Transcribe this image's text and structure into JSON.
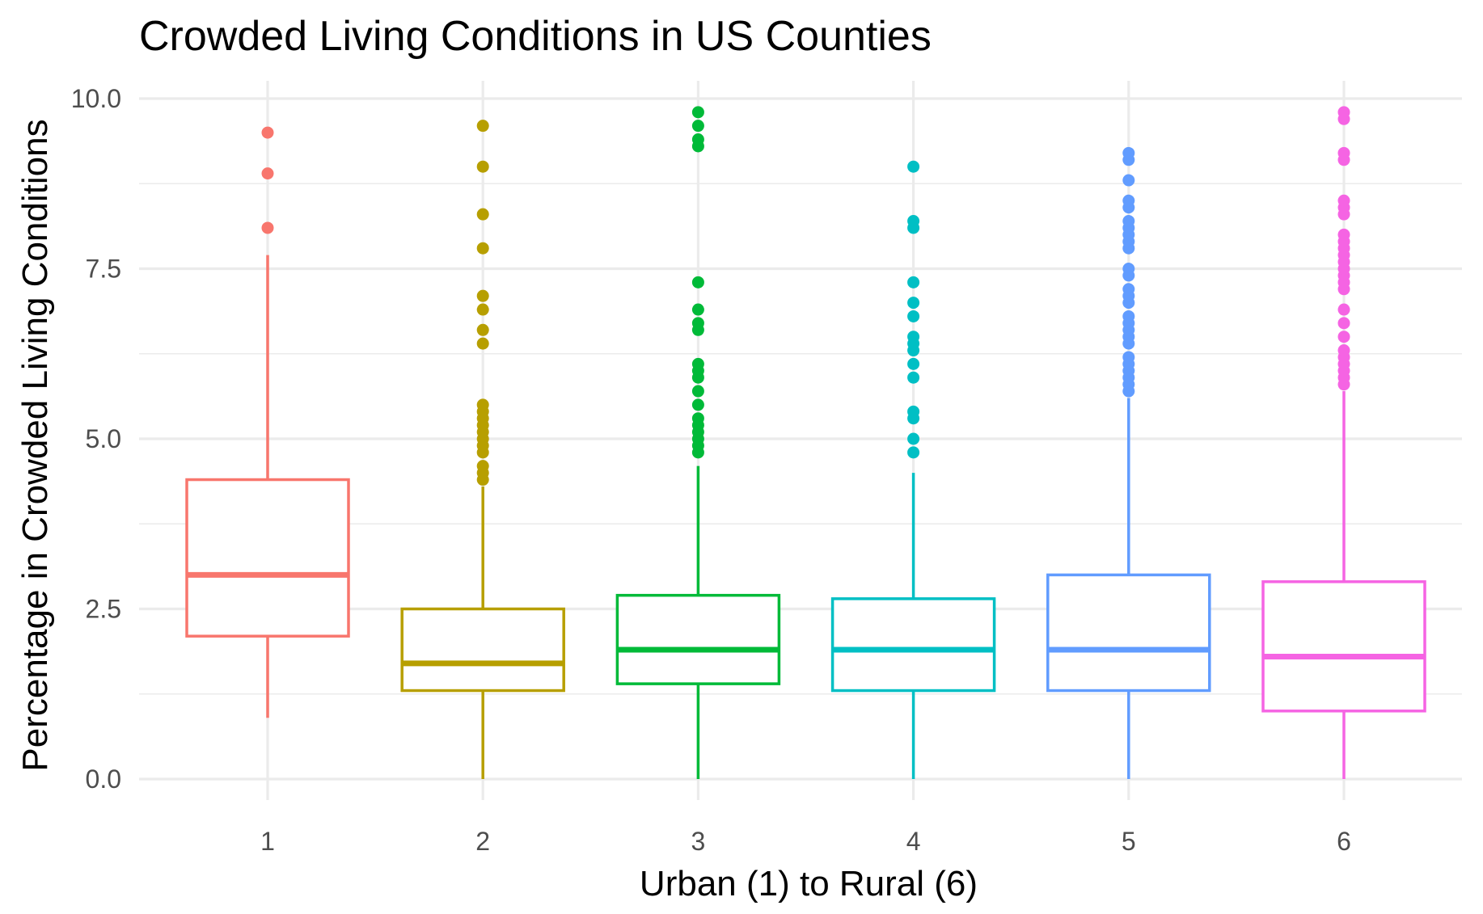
{
  "chart_data": {
    "type": "boxplot",
    "title": "Crowded Living Conditions in US Counties",
    "xlabel": "Urban (1) to Rural (6)",
    "ylabel": "Percentage in Crowded Living Conditions",
    "ylim": [
      0,
      10
    ],
    "y_ticks": [
      "0.0",
      "2.5",
      "5.0",
      "7.5",
      "10.0"
    ],
    "grid": true,
    "legend": "none",
    "categories": [
      "1",
      "2",
      "3",
      "4",
      "5",
      "6"
    ],
    "boxes": [
      {
        "category": "1",
        "color": "#F8766D",
        "whisker_low": 0.9,
        "q1": 2.1,
        "median": 3.0,
        "q3": 4.4,
        "whisker_high": 7.7,
        "outliers": [
          8.1,
          8.9,
          9.5
        ]
      },
      {
        "category": "2",
        "color": "#B79F00",
        "whisker_low": 0.0,
        "q1": 1.3,
        "median": 1.7,
        "q3": 2.5,
        "whisker_high": 4.3,
        "outliers": [
          4.4,
          4.5,
          4.6,
          4.8,
          4.9,
          5.0,
          5.1,
          5.2,
          5.3,
          5.4,
          5.5,
          6.4,
          6.6,
          6.9,
          7.1,
          7.8,
          8.3,
          9.0,
          9.6
        ]
      },
      {
        "category": "3",
        "color": "#00BA38",
        "whisker_low": 0.0,
        "q1": 1.4,
        "median": 1.9,
        "q3": 2.7,
        "whisker_high": 4.6,
        "outliers": [
          4.8,
          4.9,
          5.0,
          5.1,
          5.2,
          5.3,
          5.5,
          5.7,
          5.9,
          6.0,
          6.1,
          6.6,
          6.7,
          6.9,
          7.3,
          9.3,
          9.4,
          9.6,
          9.8
        ]
      },
      {
        "category": "4",
        "color": "#00BFC4",
        "whisker_low": 0.0,
        "q1": 1.3,
        "median": 1.9,
        "q3": 2.65,
        "whisker_high": 4.5,
        "outliers": [
          4.8,
          5.0,
          5.3,
          5.4,
          5.9,
          6.1,
          6.3,
          6.4,
          6.5,
          6.8,
          7.0,
          7.3,
          8.1,
          8.2,
          9.0
        ]
      },
      {
        "category": "5",
        "color": "#619CFF",
        "whisker_low": 0.0,
        "q1": 1.3,
        "median": 1.9,
        "q3": 3.0,
        "whisker_high": 5.6,
        "outliers": [
          5.7,
          5.8,
          5.9,
          6.0,
          6.1,
          6.2,
          6.4,
          6.5,
          6.6,
          6.7,
          6.8,
          7.0,
          7.1,
          7.2,
          7.4,
          7.5,
          7.8,
          7.9,
          8.0,
          8.1,
          8.2,
          8.4,
          8.5,
          8.8,
          9.1,
          9.2
        ]
      },
      {
        "category": "6",
        "color": "#F564E3",
        "whisker_low": 0.0,
        "q1": 1.0,
        "median": 1.8,
        "q3": 2.9,
        "whisker_high": 5.7,
        "outliers": [
          5.8,
          5.9,
          6.0,
          6.1,
          6.2,
          6.3,
          6.5,
          6.7,
          6.9,
          7.2,
          7.3,
          7.4,
          7.5,
          7.6,
          7.7,
          7.8,
          7.9,
          8.0,
          8.3,
          8.4,
          8.5,
          9.1,
          9.2,
          9.7,
          9.8
        ]
      }
    ]
  }
}
